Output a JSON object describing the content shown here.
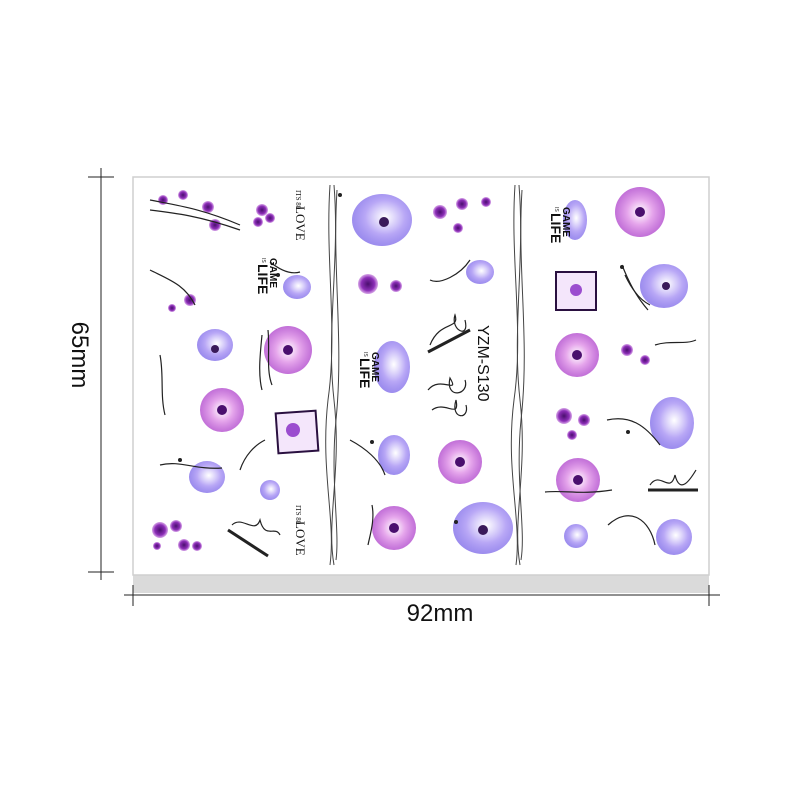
{
  "dimensions": {
    "width_label": "92mm",
    "height_label": "65mm"
  },
  "sticker_code": "YZM-S130",
  "sticker_texts": {
    "love": "LOVE",
    "love_prefix": "ITS 80",
    "game": "GAME",
    "is": "IS",
    "life": "LIFE"
  },
  "colors": {
    "purple_dark": "#6a1b9a",
    "purple": "#9c27b0",
    "violet": "#8e7cf0",
    "pink": "#e39be3",
    "sheet_border": "#cfcfcf",
    "shadow": "#d9d9d9",
    "ink": "#111111"
  }
}
